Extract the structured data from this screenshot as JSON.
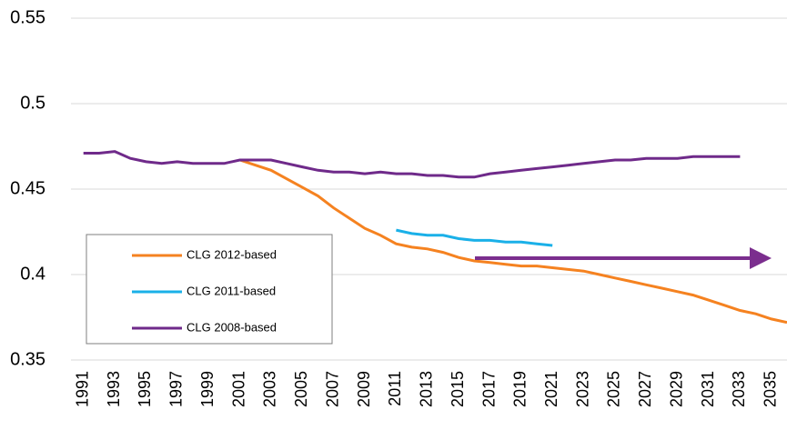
{
  "chart_data": {
    "type": "line",
    "x": [
      1991,
      1992,
      1993,
      1994,
      1995,
      1996,
      1997,
      1998,
      1999,
      2000,
      2001,
      2002,
      2003,
      2004,
      2005,
      2006,
      2007,
      2008,
      2009,
      2010,
      2011,
      2012,
      2013,
      2014,
      2015,
      2016,
      2017,
      2018,
      2019,
      2020,
      2021,
      2022,
      2023,
      2024,
      2025,
      2026,
      2027,
      2028,
      2029,
      2030,
      2031,
      2032,
      2033,
      2034,
      2035,
      2036
    ],
    "series": [
      {
        "name": "CLG 2012-based",
        "color": "#f58220",
        "values": [
          null,
          null,
          null,
          null,
          null,
          null,
          null,
          null,
          null,
          null,
          0.467,
          0.464,
          0.461,
          0.456,
          0.451,
          0.446,
          0.439,
          0.433,
          0.427,
          0.423,
          0.418,
          0.416,
          0.415,
          0.413,
          0.41,
          0.408,
          0.407,
          0.406,
          0.405,
          0.405,
          0.404,
          0.403,
          0.402,
          0.4,
          0.398,
          0.396,
          0.394,
          0.392,
          0.39,
          0.388,
          0.385,
          0.382,
          0.379,
          0.377,
          0.374,
          0.372
        ]
      },
      {
        "name": "CLG 2011-based",
        "color": "#1ab0e8",
        "values": [
          null,
          null,
          null,
          null,
          null,
          null,
          null,
          null,
          null,
          null,
          null,
          null,
          null,
          null,
          null,
          null,
          null,
          null,
          null,
          null,
          0.426,
          0.424,
          0.423,
          0.423,
          0.421,
          0.42,
          0.42,
          0.419,
          0.419,
          0.418,
          0.417,
          null,
          null,
          null,
          null,
          null,
          null,
          null,
          null,
          null,
          null,
          null,
          null,
          null,
          null,
          null
        ]
      },
      {
        "name": "CLG 2008-based",
        "color": "#6f2a8a",
        "values": [
          0.471,
          0.471,
          0.472,
          0.468,
          0.466,
          0.465,
          0.466,
          0.465,
          0.465,
          0.465,
          0.467,
          0.467,
          0.467,
          0.465,
          0.463,
          0.461,
          0.46,
          0.46,
          0.459,
          0.46,
          0.459,
          0.459,
          0.458,
          0.458,
          0.457,
          0.457,
          0.459,
          0.46,
          0.461,
          0.462,
          0.463,
          0.464,
          0.465,
          0.466,
          0.467,
          0.467,
          0.468,
          0.468,
          0.468,
          0.469,
          0.469,
          0.469,
          0.469,
          null,
          null,
          null
        ]
      }
    ],
    "xlim": [
      1990.2,
      2036
    ],
    "xticks": [
      1991,
      1993,
      1995,
      1997,
      1999,
      2001,
      2003,
      2005,
      2007,
      2009,
      2011,
      2013,
      2015,
      2017,
      2019,
      2021,
      2023,
      2025,
      2027,
      2029,
      2031,
      2033,
      2035
    ],
    "ylim": [
      0.35,
      0.55
    ],
    "yticks": [
      0.35,
      0.4,
      0.45,
      0.5,
      0.55
    ],
    "grid": true,
    "legend": "lower-left"
  }
}
